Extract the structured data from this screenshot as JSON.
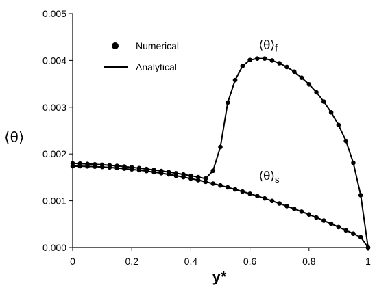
{
  "chart_data": {
    "type": "line",
    "xlabel": "y*",
    "ylabel": "⟨θ⟩",
    "xlim": [
      0,
      1
    ],
    "ylim": [
      0,
      0.005
    ],
    "x_ticks": [
      "0",
      "0.2",
      "0.4",
      "0.6",
      "0.8",
      "1"
    ],
    "y_ticks": [
      "0.000",
      "0.001",
      "0.002",
      "0.003",
      "0.004",
      "0.005"
    ],
    "legend": {
      "placement": "top-left",
      "entries": [
        {
          "label": "Numerical",
          "marker": "dot"
        },
        {
          "label": "Analytical",
          "marker": "line"
        }
      ]
    },
    "series": [
      {
        "name": "⟨θ⟩s",
        "label_main": "⟨θ⟩",
        "label_sub": "s",
        "annotation_at": [
          0.63,
          0.00145
        ],
        "x": [
          0,
          0.025,
          0.05,
          0.075,
          0.1,
          0.125,
          0.15,
          0.175,
          0.2,
          0.225,
          0.25,
          0.275,
          0.3,
          0.325,
          0.35,
          0.375,
          0.4,
          0.425,
          0.45,
          0.475,
          0.5,
          0.525,
          0.55,
          0.575,
          0.6,
          0.625,
          0.65,
          0.675,
          0.7,
          0.725,
          0.75,
          0.775,
          0.8,
          0.825,
          0.85,
          0.875,
          0.9,
          0.925,
          0.95,
          0.975,
          1
        ],
        "y": [
          0.00174,
          0.001739,
          0.001735,
          0.00173,
          0.001722,
          0.001713,
          0.001701,
          0.001687,
          0.001671,
          0.001654,
          0.001634,
          0.001612,
          0.001588,
          0.001563,
          0.001535,
          0.001505,
          0.001474,
          0.00144,
          0.001405,
          0.001367,
          0.001327,
          0.001286,
          0.001243,
          0.001197,
          0.00115,
          0.001101,
          0.00105,
          0.000997,
          0.000943,
          0.000886,
          0.000828,
          0.000768,
          0.000706,
          0.000642,
          0.000577,
          0.000509,
          0.00044,
          0.000369,
          0.000297,
          0.000222,
          0.0
        ]
      },
      {
        "name": "⟨θ⟩f",
        "label_main": "⟨θ⟩",
        "label_sub": "f",
        "annotation_at": [
          0.63,
          0.00425
        ],
        "x": [
          0,
          0.025,
          0.05,
          0.075,
          0.1,
          0.125,
          0.15,
          0.175,
          0.2,
          0.225,
          0.25,
          0.275,
          0.3,
          0.325,
          0.35,
          0.375,
          0.4,
          0.425,
          0.45,
          0.475,
          0.5,
          0.525,
          0.55,
          0.575,
          0.6,
          0.625,
          0.65,
          0.675,
          0.7,
          0.725,
          0.75,
          0.775,
          0.8,
          0.825,
          0.85,
          0.875,
          0.9,
          0.925,
          0.95,
          0.975,
          1
        ],
        "y": [
          0.0018,
          0.001795,
          0.001788,
          0.00178,
          0.00177,
          0.001759,
          0.001746,
          0.001731,
          0.001715,
          0.001698,
          0.001679,
          0.001658,
          0.001636,
          0.001613,
          0.001588,
          0.001562,
          0.001534,
          0.001505,
          0.001474,
          0.00164,
          0.00215,
          0.0031,
          0.00358,
          0.00388,
          0.00401,
          0.00404,
          0.00404,
          0.004,
          0.00394,
          0.00386,
          0.00376,
          0.00363,
          0.00349,
          0.00332,
          0.00312,
          0.00289,
          0.00262,
          0.00228,
          0.00181,
          0.00112,
          0.0
        ]
      }
    ]
  }
}
